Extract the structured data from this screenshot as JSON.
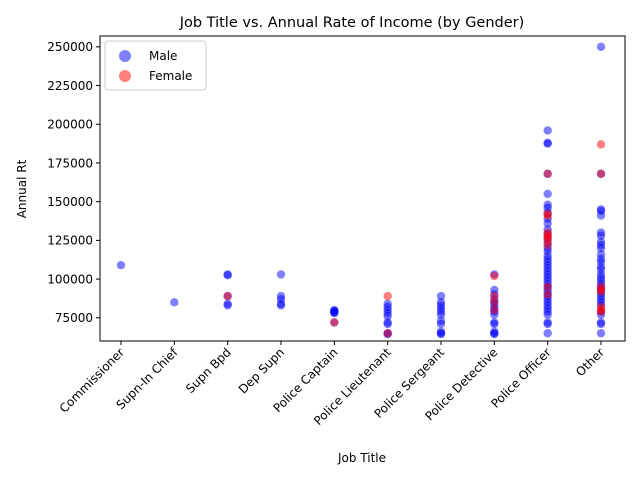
{
  "chart_data": {
    "type": "scatter",
    "title": "Job Title vs. Annual Rate of Income (by Gender)",
    "xlabel": "Job Title",
    "ylabel": "Annual Rt",
    "categories": [
      "Commissioner",
      "Supn-In Chief",
      "Supn Bpd",
      "Dep Supn",
      "Police Captain",
      "Police Lieutenant",
      "Police Sergeant",
      "Police Detective",
      "Police Officer",
      "Other"
    ],
    "yticks": [
      75000,
      100000,
      125000,
      150000,
      175000,
      200000,
      225000,
      250000
    ],
    "ylim": [
      60000,
      257000
    ],
    "grid": false,
    "legend": {
      "placement": "top-left",
      "entries": [
        {
          "name": "Male",
          "color": "#0000ff"
        },
        {
          "name": "Female",
          "color": "#ff0000"
        }
      ]
    },
    "series": [
      {
        "name": "Male",
        "color": "#0000ff",
        "opacity": 0.5,
        "points": [
          [
            "Commissioner",
            109000
          ],
          [
            "Supn-In Chief",
            85000
          ],
          [
            "Supn Bpd",
            103000
          ],
          [
            "Supn Bpd",
            102500
          ],
          [
            "Supn Bpd",
            84000
          ],
          [
            "Supn Bpd",
            83000
          ],
          [
            "Supn Bpd",
            89000
          ],
          [
            "Dep Supn",
            103000
          ],
          [
            "Dep Supn",
            89000
          ],
          [
            "Dep Supn",
            87000
          ],
          [
            "Dep Supn",
            84000
          ],
          [
            "Dep Supn",
            83000
          ],
          [
            "Police Captain",
            80000
          ],
          [
            "Police Captain",
            79500
          ],
          [
            "Police Captain",
            79000
          ],
          [
            "Police Captain",
            78500
          ],
          [
            "Police Captain",
            78000
          ],
          [
            "Police Captain",
            72000
          ],
          [
            "Police Lieutenant",
            84000
          ],
          [
            "Police Lieutenant",
            82000
          ],
          [
            "Police Lieutenant",
            80000
          ],
          [
            "Police Lieutenant",
            78000
          ],
          [
            "Police Lieutenant",
            76000
          ],
          [
            "Police Lieutenant",
            72000
          ],
          [
            "Police Lieutenant",
            71000
          ],
          [
            "Police Lieutenant",
            65000
          ],
          [
            "Police Lieutenant",
            64500
          ],
          [
            "Police Sergeant",
            89000
          ],
          [
            "Police Sergeant",
            85000
          ],
          [
            "Police Sergeant",
            83000
          ],
          [
            "Police Sergeant",
            81000
          ],
          [
            "Police Sergeant",
            79000
          ],
          [
            "Police Sergeant",
            77000
          ],
          [
            "Police Sergeant",
            73000
          ],
          [
            "Police Sergeant",
            71000
          ],
          [
            "Police Sergeant",
            66000
          ],
          [
            "Police Sergeant",
            65000
          ],
          [
            "Police Sergeant",
            64500
          ],
          [
            "Police Detective",
            103000
          ],
          [
            "Police Detective",
            93000
          ],
          [
            "Police Detective",
            90000
          ],
          [
            "Police Detective",
            87000
          ],
          [
            "Police Detective",
            85000
          ],
          [
            "Police Detective",
            83000
          ],
          [
            "Police Detective",
            81000
          ],
          [
            "Police Detective",
            79000
          ],
          [
            "Police Detective",
            77000
          ],
          [
            "Police Detective",
            72000
          ],
          [
            "Police Detective",
            71000
          ],
          [
            "Police Detective",
            66000
          ],
          [
            "Police Detective",
            65000
          ],
          [
            "Police Detective",
            64500
          ],
          [
            "Police Officer",
            196000
          ],
          [
            "Police Officer",
            188000
          ],
          [
            "Police Officer",
            187500
          ],
          [
            "Police Officer",
            168000
          ],
          [
            "Police Officer",
            155000
          ],
          [
            "Police Officer",
            148000
          ],
          [
            "Police Officer",
            146000
          ],
          [
            "Police Officer",
            143000
          ],
          [
            "Police Officer",
            139000
          ],
          [
            "Police Officer",
            136000
          ],
          [
            "Police Officer",
            132000
          ],
          [
            "Police Officer",
            129000
          ],
          [
            "Police Officer",
            126000
          ],
          [
            "Police Officer",
            123000
          ],
          [
            "Police Officer",
            120000
          ],
          [
            "Police Officer",
            118000
          ],
          [
            "Police Officer",
            115000
          ],
          [
            "Police Officer",
            113000
          ],
          [
            "Police Officer",
            111000
          ],
          [
            "Police Officer",
            109000
          ],
          [
            "Police Officer",
            107000
          ],
          [
            "Police Officer",
            105000
          ],
          [
            "Police Officer",
            103000
          ],
          [
            "Police Officer",
            101000
          ],
          [
            "Police Officer",
            99000
          ],
          [
            "Police Officer",
            97000
          ],
          [
            "Police Officer",
            95000
          ],
          [
            "Police Officer",
            93000
          ],
          [
            "Police Officer",
            91000
          ],
          [
            "Police Officer",
            89000
          ],
          [
            "Police Officer",
            87000
          ],
          [
            "Police Officer",
            85000
          ],
          [
            "Police Officer",
            83000
          ],
          [
            "Police Officer",
            81000
          ],
          [
            "Police Officer",
            79000
          ],
          [
            "Police Officer",
            77000
          ],
          [
            "Police Officer",
            72000
          ],
          [
            "Police Officer",
            71000
          ],
          [
            "Police Officer",
            65000
          ],
          [
            "Other",
            250000
          ],
          [
            "Other",
            168000
          ],
          [
            "Other",
            145000
          ],
          [
            "Other",
            144000
          ],
          [
            "Other",
            141000
          ],
          [
            "Other",
            130000
          ],
          [
            "Other",
            128000
          ],
          [
            "Other",
            124000
          ],
          [
            "Other",
            122000
          ],
          [
            "Other",
            120000
          ],
          [
            "Other",
            116000
          ],
          [
            "Other",
            113000
          ],
          [
            "Other",
            111000
          ],
          [
            "Other",
            108000
          ],
          [
            "Other",
            106000
          ],
          [
            "Other",
            103000
          ],
          [
            "Other",
            101000
          ],
          [
            "Other",
            99000
          ],
          [
            "Other",
            97000
          ],
          [
            "Other",
            95000
          ],
          [
            "Other",
            93000
          ],
          [
            "Other",
            91000
          ],
          [
            "Other",
            89000
          ],
          [
            "Other",
            87000
          ],
          [
            "Other",
            85000
          ],
          [
            "Other",
            83000
          ],
          [
            "Other",
            79000
          ],
          [
            "Other",
            77000
          ],
          [
            "Other",
            72000
          ],
          [
            "Other",
            71000
          ],
          [
            "Other",
            65000
          ]
        ]
      },
      {
        "name": "Female",
        "color": "#ff0000",
        "opacity": 0.5,
        "points": [
          [
            "Supn Bpd",
            89000
          ],
          [
            "Police Captain",
            72000
          ],
          [
            "Police Lieutenant",
            89000
          ],
          [
            "Police Lieutenant",
            65000
          ],
          [
            "Police Detective",
            102000
          ],
          [
            "Police Detective",
            89000
          ],
          [
            "Police Detective",
            85000
          ],
          [
            "Police Detective",
            80000
          ],
          [
            "Police Officer",
            168000
          ],
          [
            "Police Officer",
            142000
          ],
          [
            "Police Officer",
            141000
          ],
          [
            "Police Officer",
            130000
          ],
          [
            "Police Officer",
            128000
          ],
          [
            "Police Officer",
            127000
          ],
          [
            "Police Officer",
            125000
          ],
          [
            "Police Officer",
            122000
          ],
          [
            "Police Officer",
            95000
          ],
          [
            "Police Officer",
            90000
          ],
          [
            "Other",
            187000
          ],
          [
            "Other",
            168000
          ],
          [
            "Other",
            95000
          ],
          [
            "Other",
            93000
          ],
          [
            "Other",
            92000
          ],
          [
            "Other",
            82000
          ],
          [
            "Other",
            80000
          ],
          [
            "Other",
            79000
          ]
        ]
      }
    ]
  }
}
